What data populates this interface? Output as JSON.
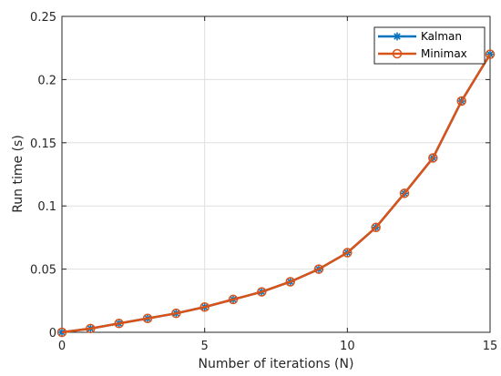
{
  "chart_data": {
    "type": "line",
    "title": "",
    "xlabel": "Number of iterations (N)",
    "ylabel": "Run time (s)",
    "xlim": [
      0,
      15
    ],
    "ylim": [
      0,
      0.25
    ],
    "xticks": [
      0,
      5,
      10,
      15
    ],
    "xtick_labels": [
      "0",
      "5",
      "10",
      "15"
    ],
    "yticks": [
      0,
      0.05,
      0.1,
      0.15,
      0.2,
      0.25
    ],
    "ytick_labels": [
      "0",
      "0.05",
      "0.1",
      "0.15",
      "0.2",
      "0.25"
    ],
    "grid": true,
    "legend_position": "top-right",
    "x": [
      0,
      1,
      2,
      3,
      4,
      5,
      6,
      7,
      8,
      9,
      10,
      11,
      12,
      13,
      14,
      15
    ],
    "series": [
      {
        "name": "Kalman",
        "color": "#0072BD",
        "marker": "asterisk",
        "values": [
          0.0,
          0.003,
          0.007,
          0.011,
          0.015,
          0.02,
          0.026,
          0.032,
          0.04,
          0.05,
          0.063,
          0.083,
          0.11,
          0.138,
          0.183,
          0.22
        ]
      },
      {
        "name": "Minimax",
        "color": "#D95319",
        "marker": "circle",
        "values": [
          0.0,
          0.003,
          0.007,
          0.011,
          0.015,
          0.02,
          0.026,
          0.032,
          0.04,
          0.05,
          0.063,
          0.083,
          0.11,
          0.138,
          0.183,
          0.22
        ]
      }
    ]
  }
}
